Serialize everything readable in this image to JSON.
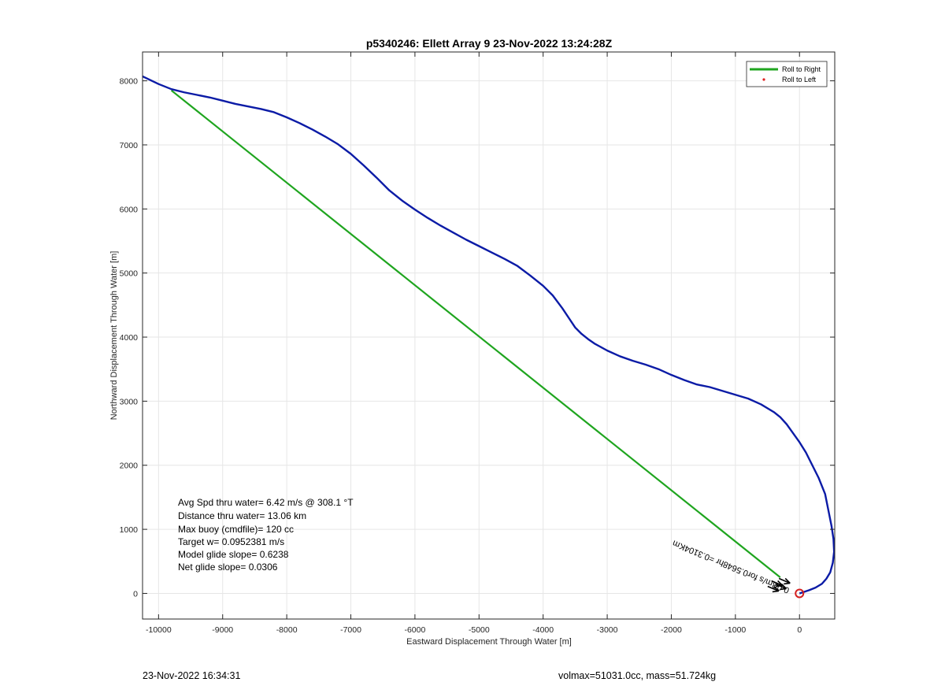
{
  "chart_data": {
    "type": "line",
    "title": "p5340246: Ellett Array 9 23-Nov-2022 13:24:28Z",
    "xlabel": "Eastward Displacement Through Water [m]",
    "ylabel": "Northward Displacement Through Water [m]",
    "xlim": [
      -10250,
      550
    ],
    "ylim": [
      -400,
      8450
    ],
    "xticks": [
      -10000,
      -9000,
      -8000,
      -7000,
      -6000,
      -5000,
      -4000,
      -3000,
      -2000,
      -1000,
      0
    ],
    "yticks": [
      0,
      1000,
      2000,
      3000,
      4000,
      5000,
      6000,
      7000,
      8000
    ],
    "grid": true,
    "legend": {
      "position": "top-right",
      "entries": [
        "Roll to Right",
        "Roll to Left"
      ]
    },
    "colors": {
      "track": "#0b1ba6",
      "roll_right": "#1fa51f",
      "roll_left": "#e02020",
      "marker": "#d42020",
      "arrow": "#000000"
    },
    "series": [
      {
        "name": "Roll to Right",
        "x": [
          -9800,
          -300
        ],
        "y": [
          7850,
          250
        ]
      },
      {
        "name": "",
        "x": [
          -10250,
          -10000,
          -9800,
          -9600,
          -9400,
          -9200,
          -9000,
          -8800,
          -8600,
          -8400,
          -8200,
          -8000,
          -7800,
          -7600,
          -7400,
          -7200,
          -7000,
          -6800,
          -6600,
          -6400,
          -6200,
          -6000,
          -5800,
          -5600,
          -5400,
          -5200,
          -5000,
          -4800,
          -4600,
          -4400,
          -4200,
          -4000,
          -3850,
          -3700,
          -3600,
          -3500,
          -3400,
          -3300,
          -3200,
          -3000,
          -2800,
          -2600,
          -2400,
          -2200,
          -2000,
          -1800,
          -1600,
          -1400,
          -1200,
          -1000,
          -800,
          -600,
          -400,
          -300,
          -200,
          -100,
          0,
          100,
          200,
          300,
          400,
          450,
          500,
          530,
          540,
          520,
          480,
          420,
          350,
          250,
          150,
          60,
          0
        ],
        "y": [
          8070,
          7950,
          7870,
          7820,
          7780,
          7740,
          7690,
          7640,
          7600,
          7560,
          7510,
          7430,
          7340,
          7240,
          7130,
          7010,
          6860,
          6680,
          6490,
          6290,
          6130,
          5990,
          5860,
          5740,
          5630,
          5520,
          5420,
          5320,
          5220,
          5110,
          4960,
          4800,
          4650,
          4450,
          4300,
          4150,
          4050,
          3970,
          3900,
          3790,
          3700,
          3630,
          3570,
          3500,
          3410,
          3330,
          3260,
          3220,
          3160,
          3100,
          3040,
          2950,
          2830,
          2750,
          2640,
          2500,
          2360,
          2200,
          2000,
          1800,
          1550,
          1300,
          1050,
          850,
          650,
          480,
          330,
          230,
          150,
          90,
          50,
          20,
          0
        ]
      }
    ],
    "end_marker": {
      "x": 0,
      "y": 0
    },
    "arrow_label": "0.0Bm/s for0.5648hr =0.3104Km",
    "annotations": [
      "Avg Spd thru water=  6.42 m/s @ 308.1 °T",
      "Distance thru water= 13.06 km",
      "Max buoy (cmdfile)= 120 cc",
      "Target w= 0.0952381 m/s",
      "Model glide slope= 0.6238",
      "Net glide slope= 0.0306"
    ]
  },
  "footer": {
    "timestamp": "23-Nov-2022 16:34:31",
    "summary": "volmax=51031.0cc, mass=51.724kg"
  }
}
